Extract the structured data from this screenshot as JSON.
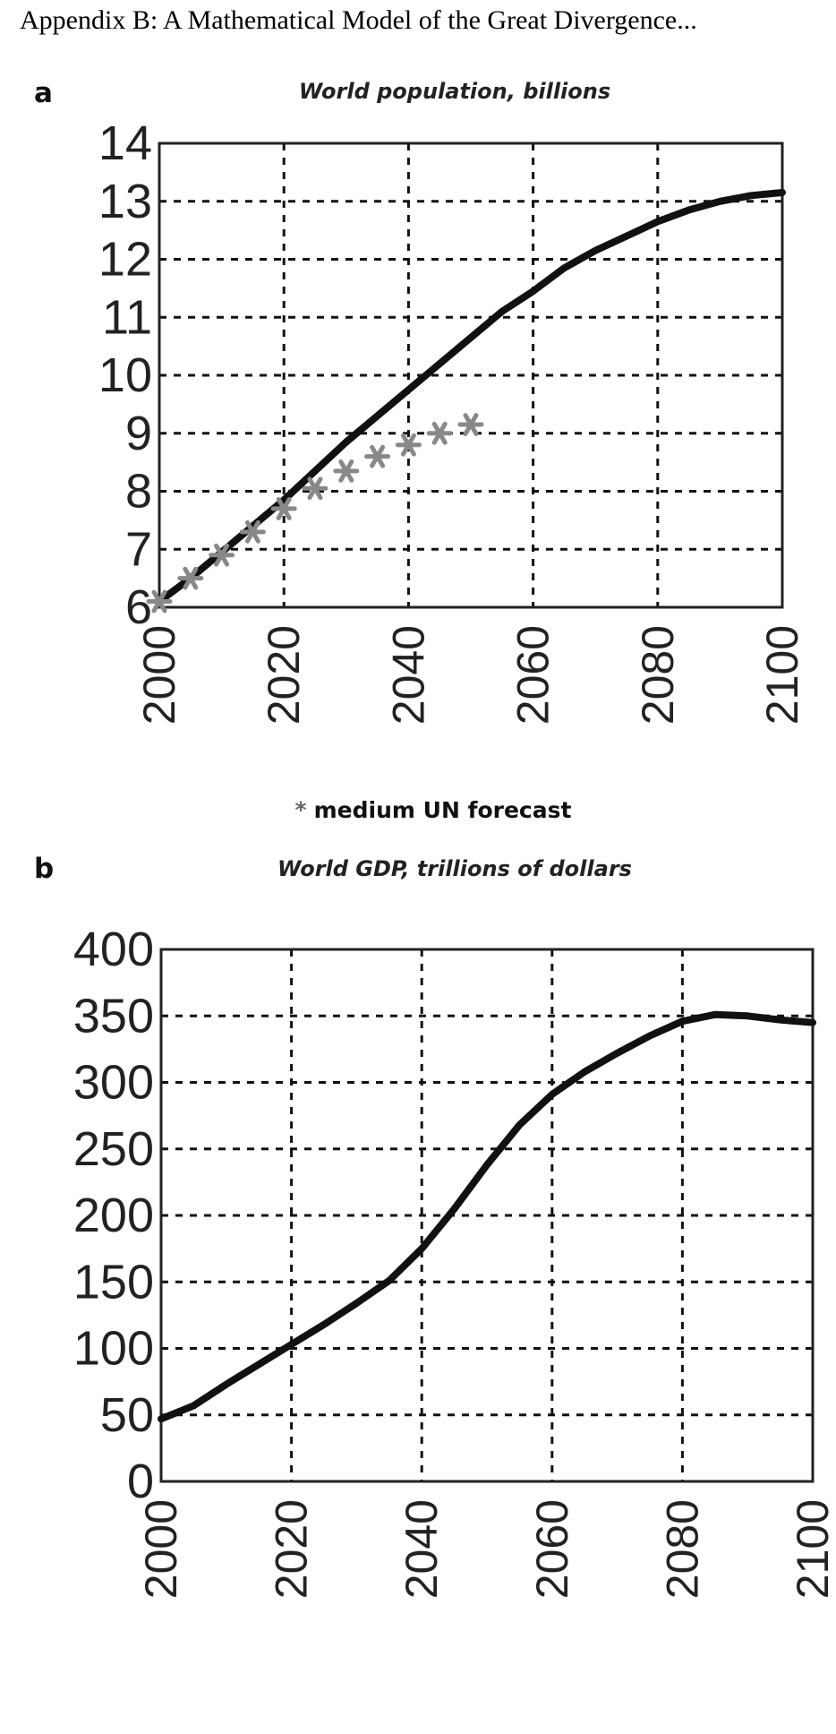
{
  "header": {
    "text": "Appendix B: A Mathematical Model of the Great Divergence..."
  },
  "panel_a": {
    "letter": "a"
  },
  "panel_b": {
    "letter": "b"
  },
  "forecast_note": {
    "star": "*",
    "text": "medium UN forecast"
  },
  "colors": {
    "line": "#111111",
    "marker": "#888888",
    "grid": "#111111"
  },
  "chart_data": [
    {
      "type": "line",
      "title": "World population, billions",
      "xlabel": "",
      "ylabel": "",
      "xlim": [
        2000,
        2100
      ],
      "ylim": [
        6,
        14
      ],
      "xticks": [
        2000,
        2020,
        2040,
        2060,
        2080,
        2100
      ],
      "yticks": [
        6,
        7,
        8,
        9,
        10,
        11,
        12,
        13,
        14
      ],
      "grid": true,
      "series": [
        {
          "name": "",
          "style": "line",
          "x": [
            2000,
            2005,
            2010,
            2015,
            2020,
            2025,
            2030,
            2035,
            2040,
            2045,
            2050,
            2055,
            2060,
            2065,
            2070,
            2075,
            2080,
            2085,
            2090,
            2095,
            2100
          ],
          "y": [
            6.1,
            6.5,
            6.95,
            7.4,
            7.85,
            8.35,
            8.85,
            9.3,
            9.75,
            10.2,
            10.65,
            11.1,
            11.45,
            11.85,
            12.15,
            12.4,
            12.65,
            12.85,
            13.0,
            13.1,
            13.15
          ]
        },
        {
          "name": "medium UN forecast",
          "style": "marker",
          "marker": "asterisk",
          "x": [
            2000,
            2005,
            2010,
            2015,
            2020,
            2025,
            2030,
            2035,
            2040,
            2045,
            2050
          ],
          "y": [
            6.1,
            6.5,
            6.9,
            7.3,
            7.7,
            8.05,
            8.35,
            8.6,
            8.8,
            9.0,
            9.15
          ]
        }
      ]
    },
    {
      "type": "line",
      "title": "World GDP, trillions of dollars",
      "xlabel": "",
      "ylabel": "",
      "xlim": [
        2000,
        2100
      ],
      "ylim": [
        0,
        400
      ],
      "xticks": [
        2000,
        2020,
        2040,
        2060,
        2080,
        2100
      ],
      "yticks": [
        0,
        50,
        100,
        150,
        200,
        250,
        300,
        350,
        400
      ],
      "grid": true,
      "series": [
        {
          "name": "",
          "style": "line",
          "x": [
            2000,
            2005,
            2010,
            2015,
            2020,
            2025,
            2030,
            2035,
            2040,
            2045,
            2050,
            2055,
            2060,
            2065,
            2070,
            2075,
            2080,
            2085,
            2090,
            2095,
            2100
          ],
          "y": [
            47,
            57,
            73,
            88,
            103,
            118,
            134,
            151,
            175,
            205,
            238,
            268,
            291,
            308,
            322,
            335,
            346,
            351,
            350,
            347,
            345
          ]
        }
      ]
    }
  ]
}
